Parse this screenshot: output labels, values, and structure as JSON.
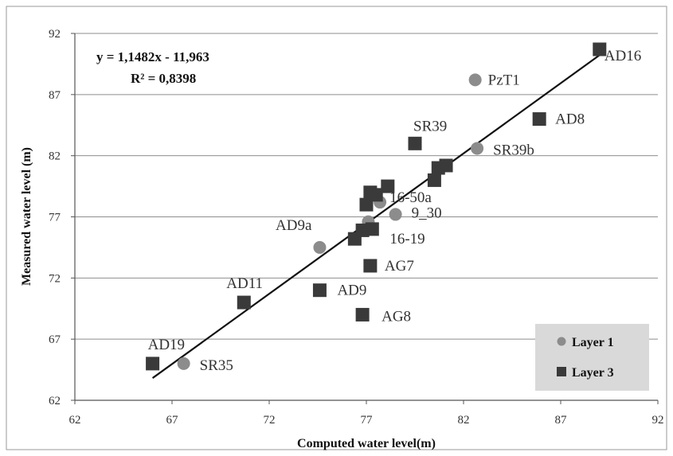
{
  "chart_data": {
    "type": "scatter",
    "xlabel": "Computed water level(m)",
    "ylabel": "Measured water level (m)",
    "xlim": [
      62,
      92
    ],
    "ylim": [
      62,
      92
    ],
    "xticks": [
      62,
      67,
      72,
      77,
      82,
      87,
      92
    ],
    "yticks": [
      62,
      67,
      72,
      77,
      82,
      87,
      92
    ],
    "grid": "horizontal",
    "legend_position": "bottom-right",
    "series": [
      {
        "name": "Layer 1",
        "marker": "circle",
        "color": "#8c8c8c",
        "points": [
          {
            "x": 82.6,
            "y": 88.2,
            "label": "PzT1"
          },
          {
            "x": 82.7,
            "y": 82.6,
            "label": "SR39b"
          },
          {
            "x": 77.7,
            "y": 78.2,
            "label": "16-50a"
          },
          {
            "x": 78.5,
            "y": 77.2,
            "label": "9_30"
          },
          {
            "x": 77.1,
            "y": 76.6,
            "label": ""
          },
          {
            "x": 74.6,
            "y": 74.5,
            "label": "AD9a"
          },
          {
            "x": 67.6,
            "y": 65.0,
            "label": "SR35"
          }
        ]
      },
      {
        "name": "Layer 3",
        "marker": "square",
        "color": "#3a3a3a",
        "points": [
          {
            "x": 89.0,
            "y": 90.7,
            "label": "AD16"
          },
          {
            "x": 85.9,
            "y": 85.0,
            "label": "AD8"
          },
          {
            "x": 79.5,
            "y": 83.0,
            "label": "SR39"
          },
          {
            "x": 80.5,
            "y": 80.0,
            "label": ""
          },
          {
            "x": 80.7,
            "y": 81.0,
            "label": ""
          },
          {
            "x": 81.1,
            "y": 81.2,
            "label": ""
          },
          {
            "x": 78.1,
            "y": 79.5,
            "label": ""
          },
          {
            "x": 77.2,
            "y": 79.0,
            "label": ""
          },
          {
            "x": 77.5,
            "y": 78.8,
            "label": ""
          },
          {
            "x": 77.0,
            "y": 78.0,
            "label": ""
          },
          {
            "x": 77.3,
            "y": 76.0,
            "label": "16-19"
          },
          {
            "x": 76.8,
            "y": 75.9,
            "label": ""
          },
          {
            "x": 76.4,
            "y": 75.2,
            "label": ""
          },
          {
            "x": 77.2,
            "y": 73.0,
            "label": "AG7"
          },
          {
            "x": 74.6,
            "y": 71.0,
            "label": "AD9"
          },
          {
            "x": 76.8,
            "y": 69.0,
            "label": "AG8"
          },
          {
            "x": 70.7,
            "y": 70.0,
            "label": "AD11"
          },
          {
            "x": 66.0,
            "y": 65.0,
            "label": "AD19"
          }
        ]
      }
    ],
    "trendline": {
      "x_range": [
        66.0,
        89.0
      ],
      "equation": "y = 1,1482x - 11,963",
      "r_squared_label": "R² = 0,8398"
    }
  }
}
